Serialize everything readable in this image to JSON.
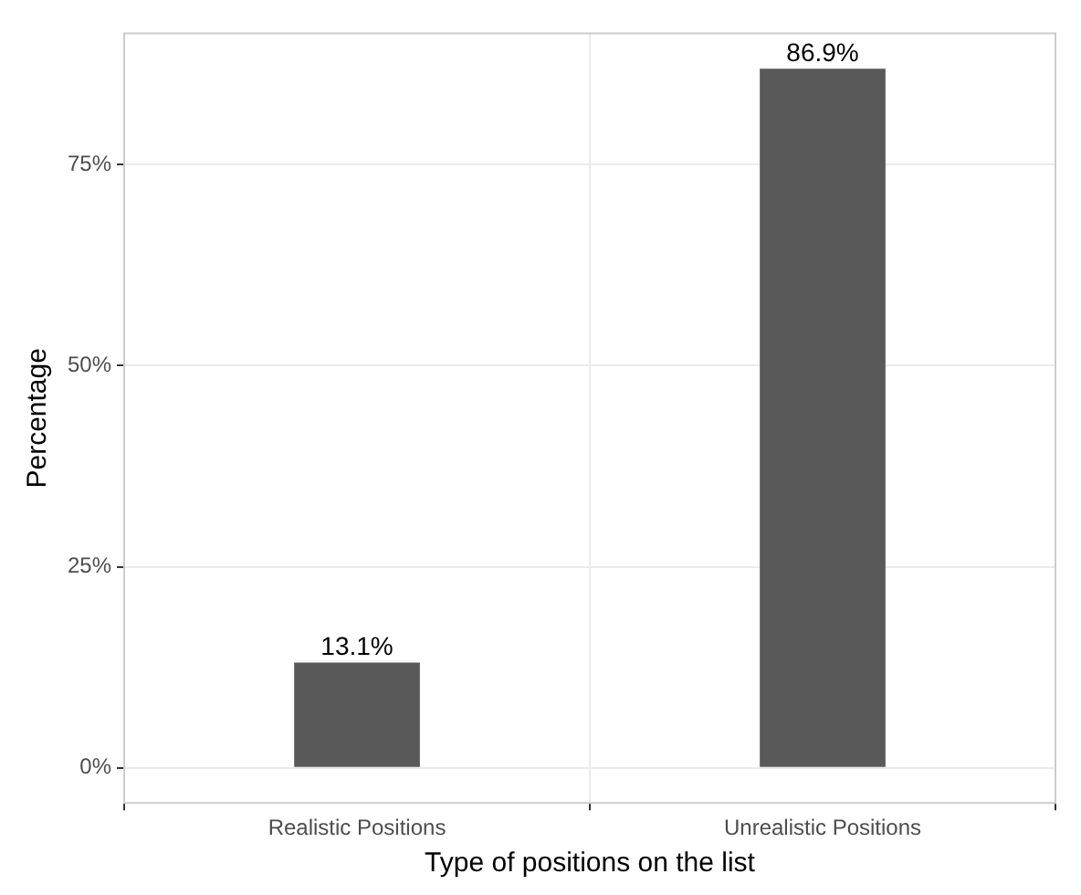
{
  "chart_data": {
    "type": "bar",
    "xlabel": "Type of positions on the list",
    "ylabel": "Percentage",
    "categories": [
      "Realistic Positions",
      "Unrealistic Positions"
    ],
    "values": [
      13.1,
      86.9
    ],
    "color": "#595959",
    "value_labels": [
      "13.1%",
      "86.9%"
    ],
    "ylim": [
      -4.35,
      91.3
    ],
    "yticks": [
      {
        "value": 0,
        "label": "0%"
      },
      {
        "value": 25,
        "label": "25%"
      },
      {
        "value": 50,
        "label": "50%"
      },
      {
        "value": 75,
        "label": "75%"
      }
    ],
    "grid": true
  }
}
